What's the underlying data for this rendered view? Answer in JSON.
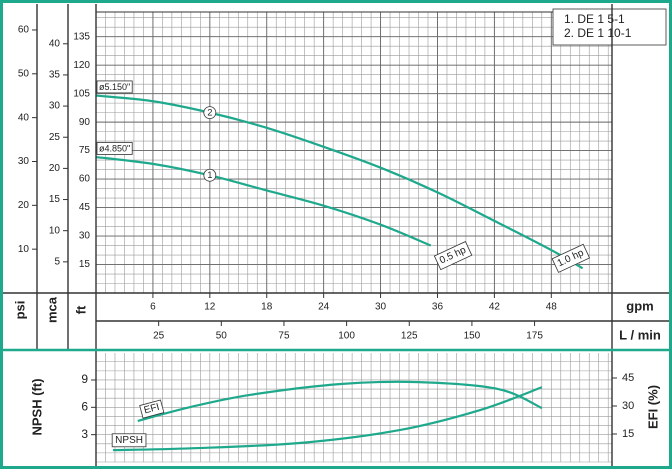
{
  "chart_data": [
    {
      "type": "line",
      "legend": "top-right",
      "grid": true,
      "xlabel": "gpm",
      "xlim": [
        0,
        54.4
      ],
      "xticks": [
        6,
        12,
        18,
        24,
        30,
        36,
        42,
        48
      ],
      "x2label": "L / min",
      "x2lim": [
        0,
        205.9
      ],
      "x2ticks": [
        25,
        50,
        75,
        100,
        125,
        150,
        175
      ],
      "ylabel": "ft",
      "ylim": [
        0,
        148
      ],
      "yticks": [
        15,
        30,
        45,
        60,
        75,
        90,
        105,
        120,
        135
      ],
      "y2label": "mca",
      "y2lim": [
        0,
        45.1
      ],
      "y2ticks": [
        5,
        10,
        15,
        20,
        25,
        30,
        35,
        40
      ],
      "y3label": "psi",
      "y3lim": [
        0,
        64.1
      ],
      "y3ticks": [
        10,
        20,
        30,
        40,
        50,
        60
      ],
      "series": [
        {
          "name": "1. DE 1  5-1",
          "marker": "1",
          "impeller": "ø4.850\"",
          "power": "0.5 hp",
          "color": "#1fa98c",
          "x": [
            0,
            6,
            12,
            18,
            24,
            30,
            35.3
          ],
          "values": [
            71.6,
            68,
            62,
            54,
            46,
            36,
            25
          ]
        },
        {
          "name": "2. DE 1 10-1",
          "marker": "2",
          "impeller": "ø5.150\"",
          "power": "1.0 hp",
          "color": "#1fa98c",
          "x": [
            0,
            6,
            12,
            18,
            24,
            30,
            36,
            42,
            48,
            51.3
          ],
          "values": [
            104,
            101,
            95,
            87,
            77,
            66,
            53,
            38,
            22.6,
            13
          ]
        }
      ]
    },
    {
      "type": "line",
      "grid": true,
      "xlim": [
        0,
        54.4
      ],
      "ylabel": "NPSH (ft)",
      "ylim": [
        0,
        11.96
      ],
      "yticks": [
        3,
        6,
        9
      ],
      "y2label": "EFI (%)",
      "y2lim": [
        0,
        58.4
      ],
      "y2ticks": [
        15,
        30,
        45
      ],
      "series": [
        {
          "name": "EFI",
          "axis": "y2",
          "color": "#1fa98c",
          "x": [
            4.4,
            10,
            16.3,
            25.8,
            34,
            42.4,
            47
          ],
          "values": [
            22,
            29.5,
            36,
            41.8,
            42.8,
            39.1,
            28.9
          ]
        },
        {
          "name": "NPSH",
          "color": "#1fa98c",
          "x": [
            1.8,
            10,
            21.6,
            32,
            40.5,
            47
          ],
          "values": [
            1.3,
            1.5,
            2.1,
            3.5,
            5.7,
            8.2
          ]
        }
      ]
    }
  ]
}
